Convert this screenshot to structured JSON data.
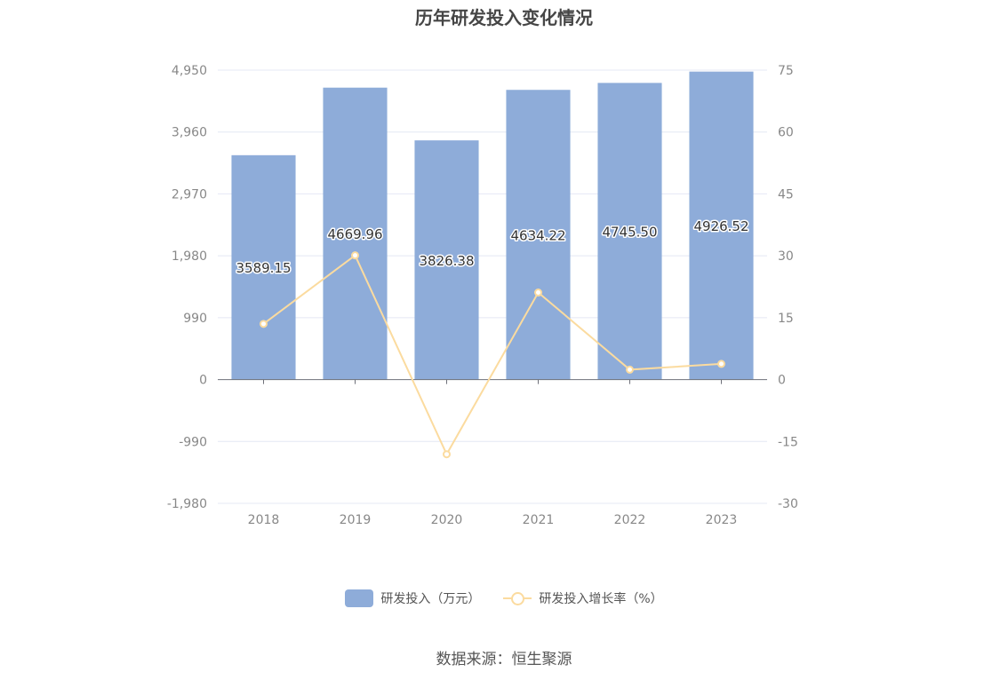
{
  "chart_data": {
    "type": "bar",
    "title": "历年研发投入变化情况",
    "categories": [
      "2018",
      "2019",
      "2020",
      "2021",
      "2022",
      "2023"
    ],
    "series": [
      {
        "name": "研发投入（万元）",
        "type": "bar",
        "axis": "left",
        "color": "#8eacd9",
        "values": [
          3589.15,
          4669.96,
          3826.38,
          4634.22,
          4745.5,
          4926.52
        ],
        "labels": [
          "3589.15",
          "4669.96",
          "3826.38",
          "4634.22",
          "4745.50",
          "4926.52"
        ]
      },
      {
        "name": "研发投入增长率（%）",
        "type": "line",
        "axis": "right",
        "color": "#fbdb9f",
        "values": [
          13.5,
          30.1,
          -18.1,
          21.1,
          2.4,
          3.8
        ]
      }
    ],
    "y_left": {
      "range": [
        -1980,
        4950
      ],
      "ticks": [
        -1980,
        -990,
        0,
        990,
        1980,
        2970,
        3960,
        4950
      ],
      "tick_labels": [
        "-1,980",
        "-990",
        "0",
        "990",
        "1,980",
        "2,970",
        "3,960",
        "4,950"
      ]
    },
    "y_right": {
      "range": [
        -30,
        75
      ],
      "ticks": [
        -30,
        -15,
        0,
        15,
        30,
        45,
        60,
        75
      ],
      "tick_labels": [
        "-30",
        "-15",
        "0",
        "15",
        "30",
        "45",
        "60",
        "75"
      ]
    },
    "grid": true,
    "legend_position": "bottom",
    "source": "数据来源：恒生聚源",
    "colors": {
      "axis_text": "#888888",
      "grid": "#e4e8f4",
      "axis_line": "#6e7079"
    }
  }
}
